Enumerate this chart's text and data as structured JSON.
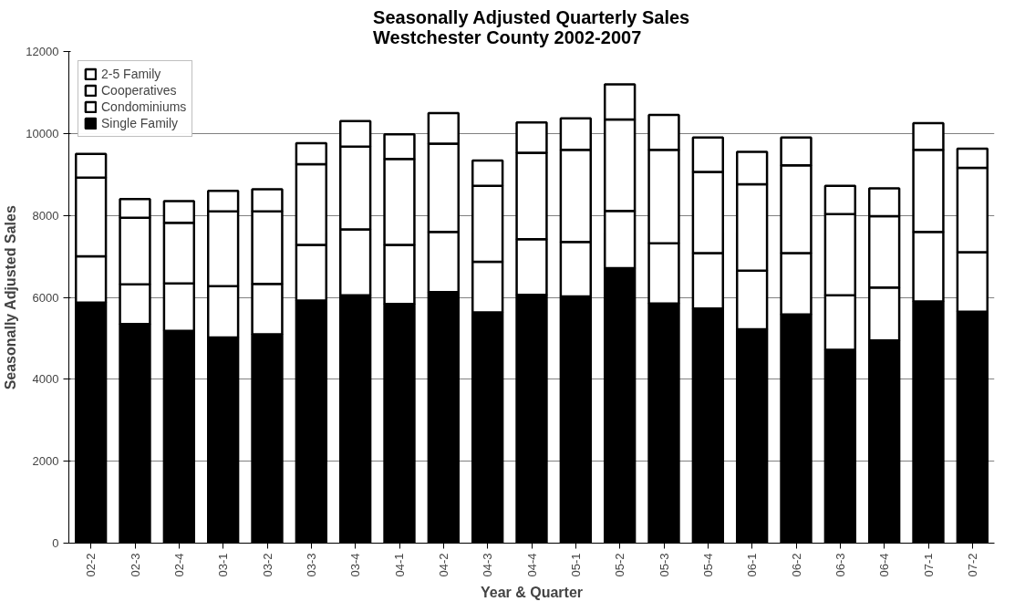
{
  "chart_data": {
    "type": "bar",
    "stacked": true,
    "title": "Seasonally Adjusted Quarterly Sales\nWestchester County 2002-2007",
    "xlabel": "Year & Quarter",
    "ylabel": "Seasonally Adjusted Sales",
    "categories": [
      "02-2",
      "02-3",
      "02-4",
      "03-1",
      "03-2",
      "03-3",
      "03-4",
      "04-1",
      "04-2",
      "04-3",
      "04-4",
      "05-1",
      "05-2",
      "05-3",
      "05-4",
      "06-1",
      "06-2",
      "06-3",
      "06-4",
      "07-1",
      "07-2"
    ],
    "series": [
      {
        "name": "Single Family",
        "color": "#000000",
        "values": [
          5870,
          5350,
          5180,
          5020,
          5100,
          5920,
          6050,
          5840,
          6130,
          5630,
          6060,
          6020,
          6710,
          5850,
          5730,
          5220,
          5580,
          4720,
          4950,
          5900,
          5650
        ]
      },
      {
        "name": "Condominiums",
        "color": "#ffffff",
        "values": [
          1130,
          970,
          1160,
          1250,
          1230,
          1360,
          1610,
          1440,
          1470,
          1240,
          1360,
          1330,
          1400,
          1470,
          1350,
          1430,
          1500,
          1330,
          1290,
          1700,
          1450
        ]
      },
      {
        "name": "Cooperatives",
        "color": "#ffffff",
        "values": [
          1920,
          1620,
          1480,
          1830,
          1770,
          1970,
          2020,
          2100,
          2150,
          1850,
          2110,
          2250,
          2230,
          2280,
          1980,
          2110,
          2140,
          1980,
          1740,
          2000,
          2060
        ]
      },
      {
        "name": "2-5 Family",
        "color": "#ffffff",
        "values": [
          580,
          460,
          530,
          500,
          540,
          510,
          620,
          600,
          750,
          620,
          740,
          770,
          860,
          850,
          840,
          790,
          680,
          690,
          680,
          650,
          470
        ]
      }
    ],
    "ylim": [
      0,
      12000
    ],
    "yticks": [
      0,
      2000,
      4000,
      6000,
      8000,
      10000,
      12000
    ],
    "grid": "y",
    "legend": "top left"
  }
}
